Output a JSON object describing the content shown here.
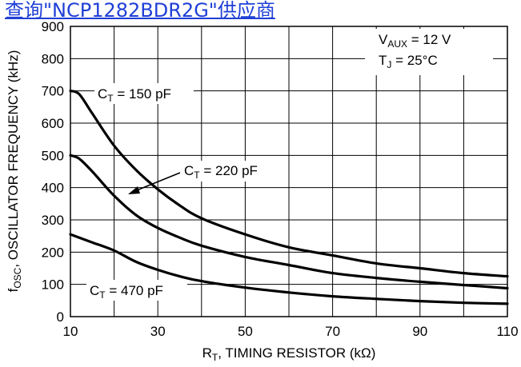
{
  "overlay_link": {
    "text": "查询\"NCP1282BDR2G\"供应商"
  },
  "chart_data": {
    "type": "line",
    "title": "",
    "xlabel": "R",
    "xlabel_sub": "T",
    "xlabel_rest": ", TIMING RESISTOR (kΩ)",
    "ylabel": "f",
    "ylabel_sub": "OSC",
    "ylabel_rest": ", OSCILLATOR FREQUENCY (kHz)",
    "xlim": [
      10,
      110
    ],
    "ylim": [
      0,
      900
    ],
    "xticks": [
      10,
      30,
      50,
      70,
      90,
      110
    ],
    "yticks": [
      0,
      100,
      200,
      300,
      400,
      500,
      600,
      700,
      800,
      900
    ],
    "grid": true,
    "annotations": [
      {
        "main": "V",
        "sub": "AUX",
        "rest": " = 12 V"
      },
      {
        "main": "T",
        "sub": "J",
        "rest": " = 25°C"
      }
    ],
    "series": [
      {
        "name_main": "C",
        "name_sub": "T",
        "name_rest": " = 150 pF",
        "x": [
          10,
          12,
          15,
          20,
          25,
          30,
          35,
          40,
          50,
          60,
          70,
          80,
          90,
          100,
          110
        ],
        "values": [
          700,
          690,
          630,
          530,
          455,
          395,
          345,
          305,
          255,
          215,
          190,
          165,
          150,
          135,
          125
        ]
      },
      {
        "name_main": "C",
        "name_sub": "T",
        "name_rest": " = 220 pF",
        "x": [
          10,
          12,
          15,
          20,
          25,
          30,
          35,
          40,
          50,
          60,
          70,
          80,
          90,
          100,
          110
        ],
        "values": [
          500,
          490,
          450,
          375,
          315,
          275,
          245,
          220,
          185,
          160,
          135,
          120,
          108,
          98,
          88
        ]
      },
      {
        "name_main": "C",
        "name_sub": "T",
        "name_rest": " = 470 pF",
        "x": [
          10,
          12,
          15,
          20,
          25,
          30,
          35,
          40,
          50,
          60,
          70,
          80,
          90,
          100,
          110
        ],
        "values": [
          255,
          245,
          230,
          205,
          170,
          145,
          125,
          110,
          90,
          75,
          63,
          55,
          48,
          43,
          40
        ]
      }
    ]
  }
}
